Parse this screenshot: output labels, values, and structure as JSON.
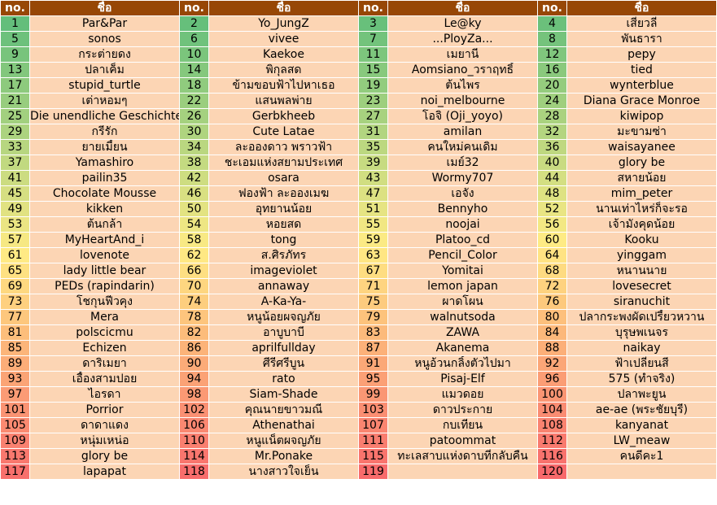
{
  "headers": [
    "no.",
    "ชื่อ",
    "no.",
    "ชื่อ",
    "no.",
    "ชื่อ",
    "no.",
    "ชื่อ"
  ],
  "rows": [
    [
      {
        "no": "1",
        "name": "Par&Par"
      },
      {
        "no": "2",
        "name": "Yo_JungZ"
      },
      {
        "no": "3",
        "name": "Le@ky"
      },
      {
        "no": "4",
        "name": "เสี่ยวลี่"
      }
    ],
    [
      {
        "no": "5",
        "name": "sonos"
      },
      {
        "no": "6",
        "name": "vivee"
      },
      {
        "no": "7",
        "name": "...PloyZa..."
      },
      {
        "no": "8",
        "name": "พันธารา"
      }
    ],
    [
      {
        "no": "9",
        "name": "กระต่ายดง"
      },
      {
        "no": "10",
        "name": "Kaekoe"
      },
      {
        "no": "11",
        "name": "เมยานี"
      },
      {
        "no": "12",
        "name": "pepy"
      }
    ],
    [
      {
        "no": "13",
        "name": "ปลาเค็ม"
      },
      {
        "no": "14",
        "name": "พิกุลสด"
      },
      {
        "no": "15",
        "name": "Aomsiano_วราฤทธิ์"
      },
      {
        "no": "16",
        "name": "tied"
      }
    ],
    [
      {
        "no": "17",
        "name": "stupid_turtle"
      },
      {
        "no": "18",
        "name": "ข้ามขอบฟ้าไปหาเธอ"
      },
      {
        "no": "19",
        "name": "ต้นไพร"
      },
      {
        "no": "20",
        "name": "wynterblue"
      }
    ],
    [
      {
        "no": "21",
        "name": "เต่าหอมๆ"
      },
      {
        "no": "22",
        "name": "แสนพลพ่าย"
      },
      {
        "no": "23",
        "name": "noi_melbourne"
      },
      {
        "no": "24",
        "name": "Diana Grace Monroe"
      }
    ],
    [
      {
        "no": "25",
        "name": "Die unendliche Geschichte"
      },
      {
        "no": "26",
        "name": "Gerbkheeb"
      },
      {
        "no": "27",
        "name": "โอจิ (Oji_yoyo)"
      },
      {
        "no": "28",
        "name": "kiwipop"
      }
    ],
    [
      {
        "no": "29",
        "name": "กรีรัก"
      },
      {
        "no": "30",
        "name": "Cute Latae"
      },
      {
        "no": "31",
        "name": "amilan"
      },
      {
        "no": "32",
        "name": "มะขามซ่า"
      }
    ],
    [
      {
        "no": "33",
        "name": "ยายเมี้ยน"
      },
      {
        "no": "34",
        "name": "ละอองดาว พราวฟ้า"
      },
      {
        "no": "35",
        "name": "คนใหม่คนเดิม"
      },
      {
        "no": "36",
        "name": "waisayanee"
      }
    ],
    [
      {
        "no": "37",
        "name": "Yamashiro"
      },
      {
        "no": "38",
        "name": "ชะเอมแห่งสยามประเทศ"
      },
      {
        "no": "39",
        "name": "เมย์32"
      },
      {
        "no": "40",
        "name": "glory be"
      }
    ],
    [
      {
        "no": "41",
        "name": "pailin35"
      },
      {
        "no": "42",
        "name": "osara"
      },
      {
        "no": "43",
        "name": "Wormy707"
      },
      {
        "no": "44",
        "name": "สหายน้อย"
      }
    ],
    [
      {
        "no": "45",
        "name": "Chocolate Mousse"
      },
      {
        "no": "46",
        "name": "ฟองฟ้า ละอองเมฆ"
      },
      {
        "no": "47",
        "name": "เอจัง"
      },
      {
        "no": "48",
        "name": "mim_peter"
      }
    ],
    [
      {
        "no": "49",
        "name": "kikken"
      },
      {
        "no": "50",
        "name": "อุทยานน้อย"
      },
      {
        "no": "51",
        "name": "Bennyho"
      },
      {
        "no": "52",
        "name": "นานเท่าไหร่ก็จะรอ"
      }
    ],
    [
      {
        "no": "53",
        "name": "ต้นกล้า"
      },
      {
        "no": "54",
        "name": "หอยสด"
      },
      {
        "no": "55",
        "name": "noojai"
      },
      {
        "no": "56",
        "name": "เจ้ามังคุดน้อย"
      }
    ],
    [
      {
        "no": "57",
        "name": "MyHeartAnd_i"
      },
      {
        "no": "58",
        "name": "tong"
      },
      {
        "no": "59",
        "name": "Platoo_cd"
      },
      {
        "no": "60",
        "name": "Kooku"
      }
    ],
    [
      {
        "no": "61",
        "name": "lovenote"
      },
      {
        "no": "62",
        "name": "ส.ศิรภัทร"
      },
      {
        "no": "63",
        "name": "Pencil_Color"
      },
      {
        "no": "64",
        "name": "yinggam"
      }
    ],
    [
      {
        "no": "65",
        "name": "lady little bear"
      },
      {
        "no": "66",
        "name": "imageviolet"
      },
      {
        "no": "67",
        "name": "Yomitai"
      },
      {
        "no": "68",
        "name": "หนานนาย"
      }
    ],
    [
      {
        "no": "69",
        "name": "PEDs (rapindarin)"
      },
      {
        "no": "70",
        "name": "annaway"
      },
      {
        "no": "71",
        "name": "lemon japan"
      },
      {
        "no": "72",
        "name": "lovesecret"
      }
    ],
    [
      {
        "no": "73",
        "name": "โชกุนฟีวคุง"
      },
      {
        "no": "74",
        "name": "A-Ka-Ya-"
      },
      {
        "no": "75",
        "name": "ผาดโผน"
      },
      {
        "no": "76",
        "name": "siranuchit"
      }
    ],
    [
      {
        "no": "77",
        "name": "Mera"
      },
      {
        "no": "78",
        "name": "หนูน้อยผจญภัย"
      },
      {
        "no": "79",
        "name": "walnutsoda"
      },
      {
        "no": "80",
        "name": "ปลากระพงผัดเปรี้ยวหวาน"
      }
    ],
    [
      {
        "no": "81",
        "name": "polscicmu"
      },
      {
        "no": "82",
        "name": "อาบูบาบี"
      },
      {
        "no": "83",
        "name": "ZAWA"
      },
      {
        "no": "84",
        "name": "บุรุษพเนจร"
      }
    ],
    [
      {
        "no": "85",
        "name": "Echizen"
      },
      {
        "no": "86",
        "name": "aprilfullday"
      },
      {
        "no": "87",
        "name": "Akanema"
      },
      {
        "no": "88",
        "name": "naikay"
      }
    ],
    [
      {
        "no": "89",
        "name": "ดาริเมยา"
      },
      {
        "no": "90",
        "name": "ศีรีศรีบูน"
      },
      {
        "no": "91",
        "name": "หนูอ้วนกลิ้งตัวไปมา"
      },
      {
        "no": "92",
        "name": "ฟ้าเปลี่ยนสี"
      }
    ],
    [
      {
        "no": "93",
        "name": "เอื้องสามปอย"
      },
      {
        "no": "94",
        "name": "rato"
      },
      {
        "no": "95",
        "name": "Pisaj-Elf"
      },
      {
        "no": "96",
        "name": "575 (ทำจริง)"
      }
    ],
    [
      {
        "no": "97",
        "name": "ไอรดา"
      },
      {
        "no": "98",
        "name": "Siam-Shade"
      },
      {
        "no": "99",
        "name": "แมวดอย"
      },
      {
        "no": "100",
        "name": "ปลาพะยูน"
      }
    ],
    [
      {
        "no": "101",
        "name": "Porrior"
      },
      {
        "no": "102",
        "name": "คุณนายขาวมณี"
      },
      {
        "no": "103",
        "name": "ดาวประกาย"
      },
      {
        "no": "104",
        "name": "ae-ae (พระชัยบุรี)"
      }
    ],
    [
      {
        "no": "105",
        "name": "ดาดาแดง"
      },
      {
        "no": "106",
        "name": "Athenathai"
      },
      {
        "no": "107",
        "name": "กบเทียน"
      },
      {
        "no": "108",
        "name": "kanyanat"
      }
    ],
    [
      {
        "no": "109",
        "name": "หนุ่มเหน่อ"
      },
      {
        "no": "110",
        "name": "หนูแน็ตผจญภัย"
      },
      {
        "no": "111",
        "name": "patoommat"
      },
      {
        "no": "112",
        "name": "LW_meaw"
      }
    ],
    [
      {
        "no": "113",
        "name": "glory be"
      },
      {
        "no": "114",
        "name": "Mr.Ponake"
      },
      {
        "no": "115",
        "name": "ทะเลสาบแห่งดาบที่กลับคืน"
      },
      {
        "no": "116",
        "name": "คนดีคะ1"
      }
    ],
    [
      {
        "no": "117",
        "name": "lapapat"
      },
      {
        "no": "118",
        "name": "นางสาวใจเย็น"
      },
      {
        "no": "119",
        "name": ""
      },
      {
        "no": "120",
        "name": ""
      }
    ]
  ],
  "colors": {
    "header_bg": "#974706",
    "header_text": "#ffffff",
    "name_bg": "#fcd5b4",
    "scale_low": "#63be7b",
    "scale_mid": "#ffeb84",
    "scale_high": "#f8696b"
  }
}
